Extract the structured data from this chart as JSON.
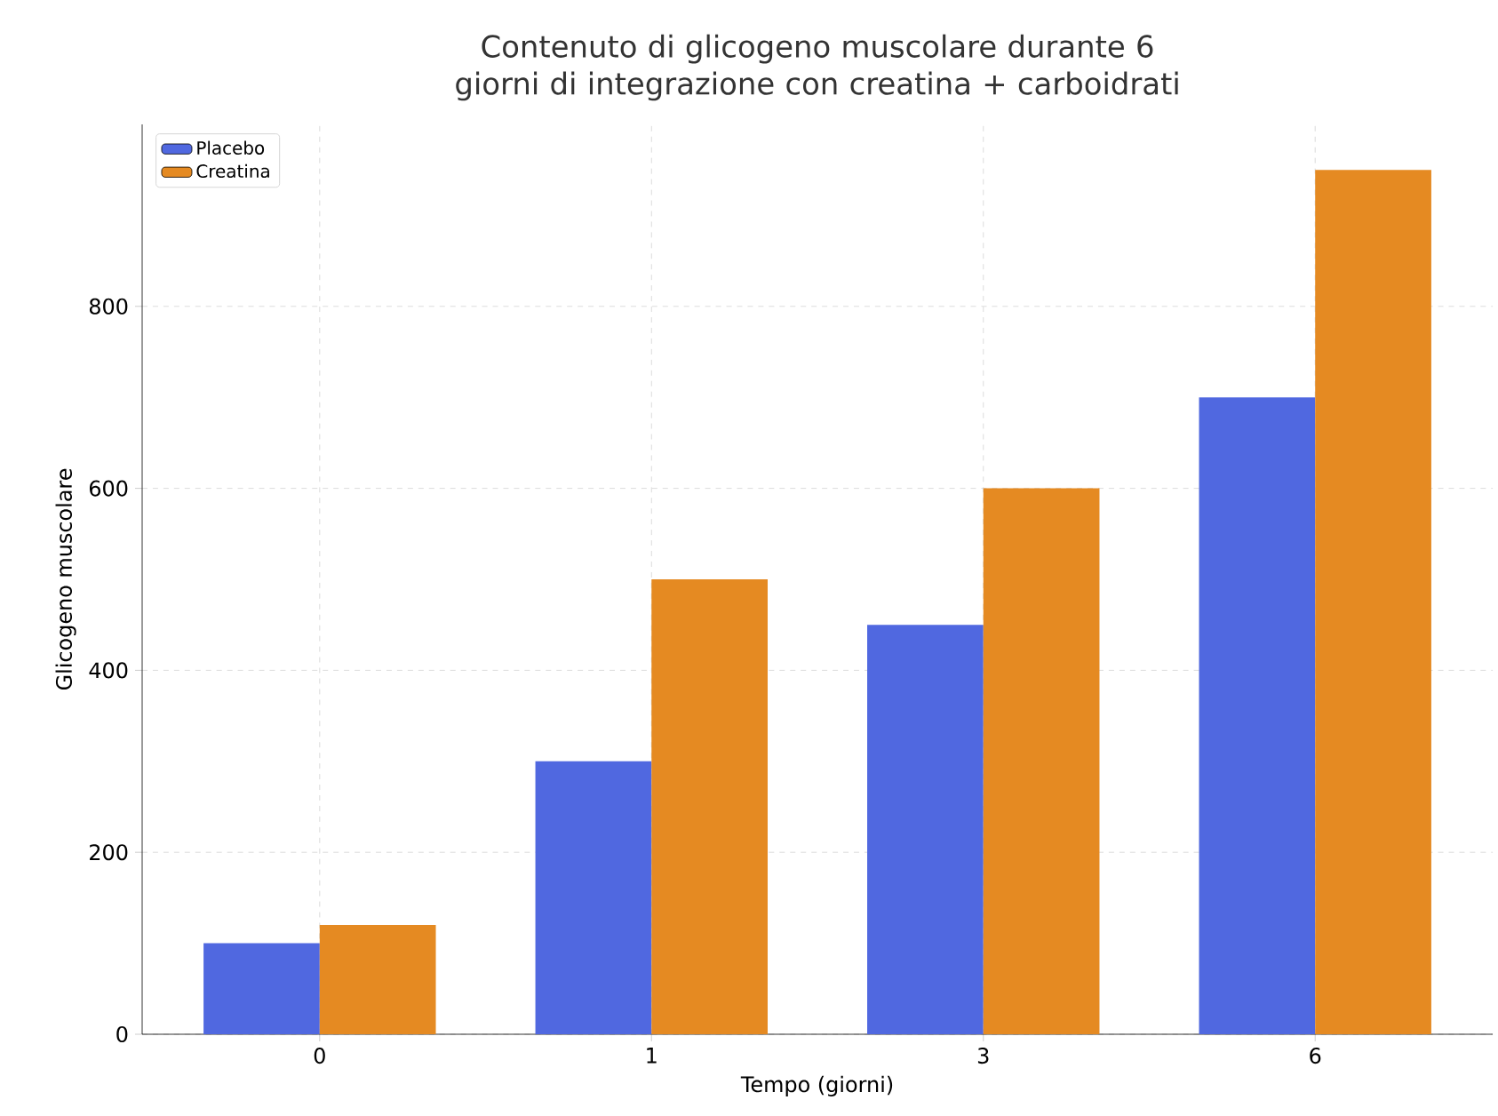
{
  "chart_data": {
    "type": "bar",
    "title": "Contenuto di glicogeno muscolare durante 6 giorni di integrazione con creatina + carboidrati",
    "xlabel": "Tempo (giorni)",
    "ylabel": "Glicogeno muscolare",
    "categories": [
      "0",
      "1",
      "3",
      "6"
    ],
    "series": [
      {
        "name": "Placebo",
        "color": "#5068e0",
        "values": [
          100,
          300,
          450,
          700
        ]
      },
      {
        "name": "Creatina",
        "color": "#e58a22",
        "values": [
          120,
          500,
          600,
          950
        ]
      }
    ],
    "ylim": [
      0,
      1000
    ],
    "yticks": [
      0,
      200,
      400,
      600,
      800
    ],
    "grid": true,
    "legend": "top left"
  }
}
